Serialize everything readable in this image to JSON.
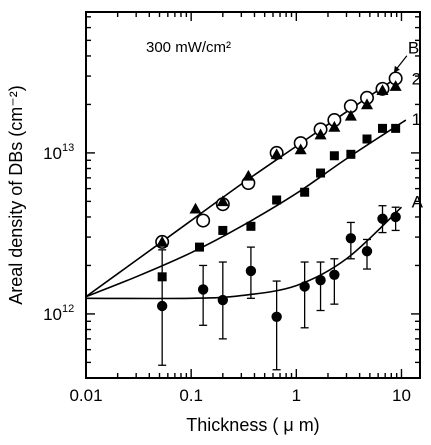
{
  "chart_data": {
    "type": "scatter",
    "title": "",
    "annotation": "300 mW/cm²",
    "xlabel": "Thickness ( μ m)",
    "ylabel": "Areal density of DBs (cm⁻²)",
    "x_scale": "log",
    "y_scale": "log",
    "xlim": [
      0.01,
      15
    ],
    "ylim": [
      400000000000.0,
      75000000000000.0
    ],
    "x_ticks": [
      {
        "value": 0.01,
        "label": "0.01"
      },
      {
        "value": 0.1,
        "label": "0.1"
      },
      {
        "value": 1,
        "label": "1"
      },
      {
        "value": 10,
        "label": "10"
      }
    ],
    "y_ticks": [
      {
        "value": 1000000000000.0,
        "label_base": "10",
        "label_exp": "12"
      },
      {
        "value": 10000000000000.0,
        "label_base": "10",
        "label_exp": "13"
      }
    ],
    "grid": false,
    "legend": "none",
    "series": [
      {
        "label": "B",
        "marker": "open-circle",
        "points": [
          {
            "x": 0.053,
            "y": 2800000000000.0
          },
          {
            "x": 0.13,
            "y": 3800000000000.0
          },
          {
            "x": 0.2,
            "y": 4800000000000.0
          },
          {
            "x": 0.35,
            "y": 6500000000000.0
          },
          {
            "x": 0.65,
            "y": 10000000000000.0
          },
          {
            "x": 1.1,
            "y": 11500000000000.0
          },
          {
            "x": 1.7,
            "y": 14000000000000.0
          },
          {
            "x": 2.3,
            "y": 16000000000000.0
          },
          {
            "x": 3.3,
            "y": 19500000000000.0
          },
          {
            "x": 4.7,
            "y": 22000000000000.0
          },
          {
            "x": 6.6,
            "y": 25000000000000.0
          },
          {
            "x": 8.8,
            "y": 29000000000000.0
          }
        ]
      },
      {
        "label": "2",
        "marker": "filled-triangle",
        "points": [
          {
            "x": 0.053,
            "y": 2800000000000.0
          },
          {
            "x": 0.11,
            "y": 4500000000000.0
          },
          {
            "x": 0.2,
            "y": 5000000000000.0
          },
          {
            "x": 0.35,
            "y": 7200000000000.0
          },
          {
            "x": 0.65,
            "y": 9800000000000.0
          },
          {
            "x": 1.1,
            "y": 10500000000000.0
          },
          {
            "x": 1.7,
            "y": 13000000000000.0
          },
          {
            "x": 2.3,
            "y": 14500000000000.0
          },
          {
            "x": 3.3,
            "y": 17000000000000.0
          },
          {
            "x": 4.7,
            "y": 20000000000000.0
          },
          {
            "x": 6.6,
            "y": 24500000000000.0
          },
          {
            "x": 8.8,
            "y": 26000000000000.0
          }
        ]
      },
      {
        "label": "1",
        "marker": "filled-square",
        "points": [
          {
            "x": 0.053,
            "y": 1700000000000.0
          },
          {
            "x": 0.12,
            "y": 2600000000000.0
          },
          {
            "x": 0.2,
            "y": 3300000000000.0
          },
          {
            "x": 0.37,
            "y": 3500000000000.0
          },
          {
            "x": 0.65,
            "y": 5100000000000.0
          },
          {
            "x": 1.2,
            "y": 5700000000000.0
          },
          {
            "x": 1.7,
            "y": 7500000000000.0
          },
          {
            "x": 2.3,
            "y": 9600000000000.0
          },
          {
            "x": 3.3,
            "y": 9800000000000.0
          },
          {
            "x": 4.7,
            "y": 12200000000000.0
          },
          {
            "x": 6.6,
            "y": 14200000000000.0
          },
          {
            "x": 8.8,
            "y": 14200000000000.0
          }
        ]
      },
      {
        "label": "A",
        "marker": "filled-circle",
        "points": [
          {
            "x": 0.053,
            "y": 1120000000000.0,
            "y_low": 480000000000.0,
            "y_high": 2500000000000.0
          },
          {
            "x": 0.13,
            "y": 1420000000000.0,
            "y_low": 850000000000.0,
            "y_high": 2000000000000.0
          },
          {
            "x": 0.2,
            "y": 1220000000000.0,
            "y_low": 700000000000.0,
            "y_high": 2100000000000.0
          },
          {
            "x": 0.37,
            "y": 1850000000000.0,
            "y_low": 1250000000000.0,
            "y_high": 2600000000000.0
          },
          {
            "x": 0.65,
            "y": 960000000000.0,
            "y_low": 450000000000.0,
            "y_high": 1600000000000.0
          },
          {
            "x": 1.2,
            "y": 1480000000000.0,
            "y_low": 820000000000.0,
            "y_high": 2100000000000.0
          },
          {
            "x": 1.7,
            "y": 1620000000000.0,
            "y_low": 1050000000000.0,
            "y_high": 2100000000000.0
          },
          {
            "x": 2.3,
            "y": 1750000000000.0,
            "y_low": 1150000000000.0,
            "y_high": 2200000000000.0
          },
          {
            "x": 3.3,
            "y": 2950000000000.0,
            "y_low": 2200000000000.0,
            "y_high": 3700000000000.0
          },
          {
            "x": 4.7,
            "y": 2450000000000.0,
            "y_low": 1900000000000.0,
            "y_high": 2900000000000.0
          },
          {
            "x": 6.6,
            "y": 3900000000000.0,
            "y_low": 3200000000000.0,
            "y_high": 4700000000000.0
          },
          {
            "x": 8.8,
            "y": 4000000000000.0,
            "y_low": 3300000000000.0,
            "y_high": 4600000000000.0
          }
        ]
      }
    ],
    "fit_curves": [
      {
        "label": "B",
        "points": [
          {
            "x": 0.01,
            "y": 1280000000000.0
          },
          {
            "x": 0.03,
            "y": 2150000000000.0
          },
          {
            "x": 0.1,
            "y": 3800000000000.0
          },
          {
            "x": 0.3,
            "y": 6400000000000.0
          },
          {
            "x": 1,
            "y": 11000000000000.0
          },
          {
            "x": 3,
            "y": 18000000000000.0
          },
          {
            "x": 9.5,
            "y": 30000000000000.0
          }
        ]
      },
      {
        "label": "1",
        "points": [
          {
            "x": 0.01,
            "y": 1280000000000.0
          },
          {
            "x": 0.03,
            "y": 1700000000000.0
          },
          {
            "x": 0.1,
            "y": 2400000000000.0
          },
          {
            "x": 0.3,
            "y": 3500000000000.0
          },
          {
            "x": 1,
            "y": 5600000000000.0
          },
          {
            "x": 3,
            "y": 9200000000000.0
          },
          {
            "x": 11,
            "y": 16000000000000.0
          }
        ]
      },
      {
        "label": "A",
        "points": [
          {
            "x": 0.01,
            "y": 1250000000000.0
          },
          {
            "x": 0.1,
            "y": 1250000000000.0
          },
          {
            "x": 0.3,
            "y": 1300000000000.0
          },
          {
            "x": 1,
            "y": 1500000000000.0
          },
          {
            "x": 3,
            "y": 2200000000000.0
          },
          {
            "x": 10,
            "y": 4600000000000.0
          }
        ]
      }
    ],
    "curve_labels": [
      {
        "text": "B",
        "at_x": 11.5,
        "at_y": 45000000000000.0
      },
      {
        "text": "2",
        "at_x": 12.5,
        "at_y": 29000000000000.0
      },
      {
        "text": "1",
        "at_x": 12.5,
        "at_y": 16200000000000.0
      },
      {
        "text": "A",
        "at_x": 12.5,
        "at_y": 5000000000000.0
      }
    ]
  }
}
